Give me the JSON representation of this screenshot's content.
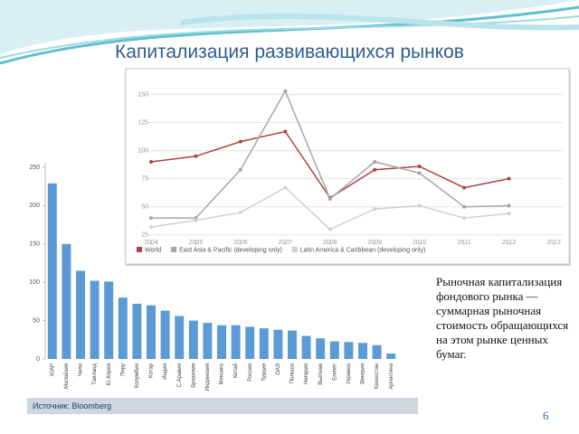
{
  "title": "Капитализация развивающихся рынков",
  "note": "Рыночная капитализация фондового рынка — суммарная рыночная стоимость обращающихся на этом рынке ценных бумаг.",
  "source": "Источник: Bloomberg",
  "page_number": "6",
  "chart_data": [
    {
      "type": "bar",
      "color": "#5b9bd5",
      "categories": [
        "ЮАР",
        "Малайзия",
        "Чили",
        "Таиланд",
        "Ю.Корея",
        "Перу",
        "Колумбия",
        "Катар",
        "Индия",
        "С.Аравия",
        "Бразилия",
        "Индонезия",
        "Мексика",
        "Китай",
        "Россия",
        "Турция",
        "ОАЭ",
        "Польша",
        "Нигерия",
        "Вьетнам",
        "Египет",
        "Украина",
        "Венгрия",
        "Казахстан",
        "Аргентина"
      ],
      "values": [
        229,
        150,
        115,
        102,
        101,
        80,
        72,
        70,
        63,
        56,
        50,
        47,
        44,
        44,
        42,
        40,
        38,
        37,
        30,
        27,
        23,
        22,
        21,
        18,
        7
      ],
      "ylim": [
        0,
        250
      ],
      "yticks": [
        0,
        50,
        100,
        150,
        200,
        250
      ]
    },
    {
      "type": "line",
      "x": [
        2004,
        2005,
        2006,
        2007,
        2008,
        2009,
        2010,
        2011,
        2012,
        2013
      ],
      "xlim": [
        2004,
        2013
      ],
      "xticks": [
        2004,
        2005,
        2006,
        2007,
        2008,
        2009,
        2010,
        2011,
        2012,
        2013
      ],
      "ylim": [
        20,
        160
      ],
      "yticks": [
        25,
        50,
        75,
        100,
        125,
        150
      ],
      "grid": true,
      "series": [
        {
          "name": "World",
          "color": "#a94442",
          "values": [
            90,
            95,
            108,
            117,
            58,
            83,
            86,
            67,
            75,
            null
          ]
        },
        {
          "name": "East Asia & Pacific (developing only)",
          "color": "#a6a6a6",
          "values": [
            40,
            40,
            83,
            153,
            57,
            90,
            80,
            50,
            51,
            null
          ]
        },
        {
          "name": "Latin America & Caribbean (developing only)",
          "color": "#d0d0d0",
          "values": [
            32,
            38,
            45,
            67,
            30,
            48,
            51,
            40,
            44,
            null
          ]
        }
      ]
    }
  ]
}
